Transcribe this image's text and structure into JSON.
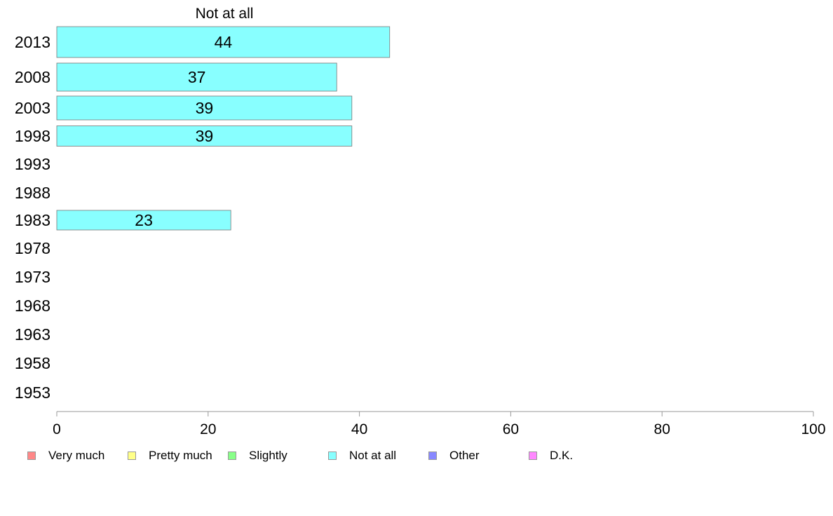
{
  "chart_data": {
    "type": "bar",
    "orientation": "horizontal",
    "panel_title": "Not at all",
    "categories": [
      "2013",
      "2008",
      "2003",
      "1998",
      "1993",
      "1988",
      "1983",
      "1978",
      "1973",
      "1968",
      "1963",
      "1958",
      "1953"
    ],
    "series": [
      {
        "name": "Not at all",
        "color": "#88ffff",
        "values": [
          44,
          37,
          39,
          39,
          null,
          null,
          23,
          null,
          null,
          null,
          null,
          null,
          null
        ],
        "data_labels": [
          "44",
          "37",
          "39",
          "39",
          "",
          "",
          "23",
          "",
          "",
          "",
          "",
          "",
          ""
        ]
      }
    ],
    "xlim": [
      0,
      100
    ],
    "xticks": [
      0,
      20,
      40,
      60,
      80,
      100
    ],
    "xtick_labels": [
      "0",
      "20",
      "40",
      "60",
      "80",
      "100"
    ],
    "grid": false,
    "legend_position": "bottom",
    "legend": [
      {
        "label": "Very much",
        "color": "#ff8888"
      },
      {
        "label": "Pretty much",
        "color": "#ffff88"
      },
      {
        "label": "Slightly",
        "color": "#88ff88"
      },
      {
        "label": "Not at all",
        "color": "#88ffff"
      },
      {
        "label": "Other",
        "color": "#8888ff"
      },
      {
        "label": "D.K.",
        "color": "#ff88ff"
      }
    ]
  }
}
